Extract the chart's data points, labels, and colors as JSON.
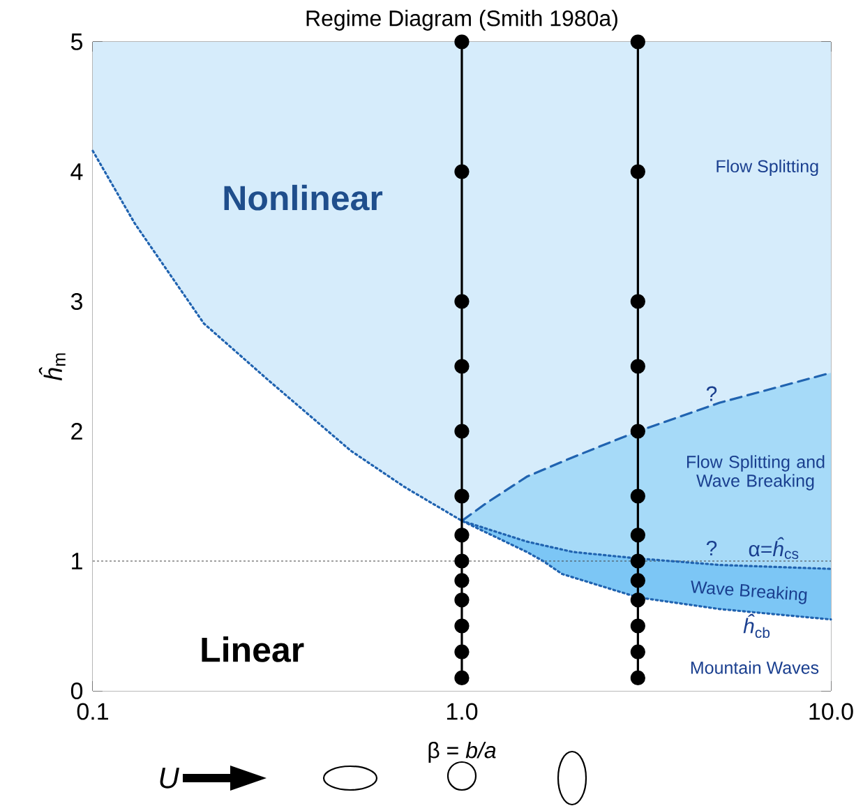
{
  "chart_data": {
    "type": "line",
    "title": "Regime Diagram (Smith 1980a)",
    "xlabel": "β = *b/a*",
    "ylabel": "*ĥ*$_{m}$",
    "log": "x",
    "xlim": [
      0.1,
      10
    ],
    "ylim": [
      0,
      5
    ],
    "xticks": [
      {
        "value": 0.1,
        "label": "0.1"
      },
      {
        "value": 1,
        "label": "1.0"
      },
      {
        "value": 10,
        "label": "10.0"
      }
    ],
    "yticks": [
      0,
      1,
      2,
      3,
      4,
      5
    ],
    "series": [
      {
        "type": "area",
        "color": "#a6daf8",
        "line_style": "dashed",
        "x": [
          1,
          1.17,
          1.5,
          2,
          3,
          5,
          10
        ],
        "values": [
          1.31,
          1.45,
          1.65,
          1.8,
          2.0,
          2.22,
          2.45
        ]
      },
      {
        "type": "area",
        "color": "#7cc6f5",
        "line_style": "dotted",
        "x": [
          1,
          1.5,
          2,
          3,
          5,
          10
        ],
        "values": [
          1.31,
          1.15,
          1.07,
          1.02,
          0.97,
          0.94
        ]
      },
      {
        "type": "area",
        "color": "#ffffff",
        "line_style": "dotted",
        "x": [
          0.1,
          0.13,
          0.2,
          0.3,
          0.5,
          0.7,
          1,
          1.5,
          1.66,
          1.87,
          3,
          5,
          10
        ],
        "values": [
          4.16,
          3.6,
          2.83,
          2.39,
          1.85,
          1.57,
          1.31,
          1.07,
          1.0,
          0.9,
          0.72,
          0.63,
          0.55
        ]
      },
      {
        "color": "#000000",
        "line_style": "solid",
        "marker": "circle",
        "x": [
          1,
          1,
          1,
          1,
          1,
          1,
          1,
          1,
          1,
          1,
          1,
          1,
          1
        ],
        "values": [
          0.1,
          0.3,
          0.5,
          0.7,
          0.85,
          1,
          1.2,
          1.5,
          2,
          2.5,
          3,
          4,
          5
        ]
      },
      {
        "color": "#000000",
        "line_style": "solid",
        "marker": "circle",
        "x": [
          3,
          3,
          3,
          3,
          3,
          3,
          3,
          3,
          3,
          3,
          3,
          3,
          3
        ],
        "values": [
          0.1,
          0.3,
          0.5,
          0.7,
          0.85,
          1,
          1.2,
          1.5,
          2,
          2.5,
          3,
          4,
          5
        ]
      }
    ],
    "bands": [
      {
        "axis": "x",
        "from": 0.1,
        "to": 10,
        "color": "#d6ecfb"
      }
    ],
    "ref_lines": [
      {
        "axis": "y",
        "value": 1,
        "color": "#404040",
        "line_style": "dotted"
      }
    ],
    "annotations": [
      "Nonlinear",
      "Linear",
      "Flow Splitting",
      "Flow Splitting and Wave Breaking",
      "Wave Breaking",
      "Mountain Waves",
      "?",
      "?",
      "α=*ĥ*$_{cs}$",
      "*ĥ*$_{cb}$",
      "U"
    ]
  }
}
